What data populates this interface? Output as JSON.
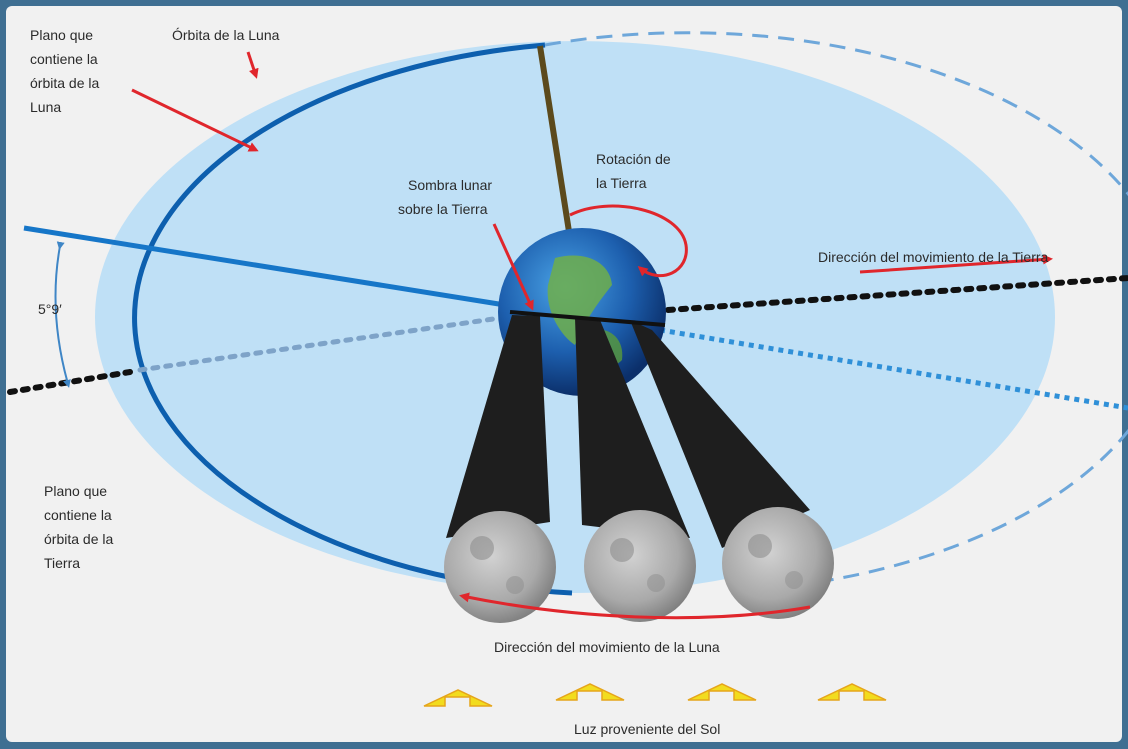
{
  "labels": {
    "plane_moon_top": [
      "Plano que",
      "contiene la",
      "órbita de la",
      "Luna"
    ],
    "moon_orbit": "Órbita de la Luna",
    "earth_rotation": [
      "Rotación de",
      "la Tierra"
    ],
    "lunar_shadow": [
      "Sombra lunar",
      "sobre la Tierra"
    ],
    "earth_motion": "Dirección del movimiento de la Tierra",
    "angle": "5°9′",
    "plane_earth_orbit": [
      "Plano que",
      "contiene la",
      "órbita de la",
      "Tierra"
    ],
    "moon_motion": "Dirección del movimiento de la Luna",
    "sunlight": "Luz proveniente del Sol"
  },
  "colors": {
    "frame": "#3f6f92",
    "background": "#f1f1f1",
    "orbit_plane_fill": "#bfe0f6",
    "orbit_line": "#0d5fae",
    "ecliptic_dots": "#111111",
    "red_arrow": "#e0262c",
    "shadow_cone": "#1e1e1e",
    "sun_arrow": "#f2dc1e"
  },
  "sun_arrow_count": 4
}
